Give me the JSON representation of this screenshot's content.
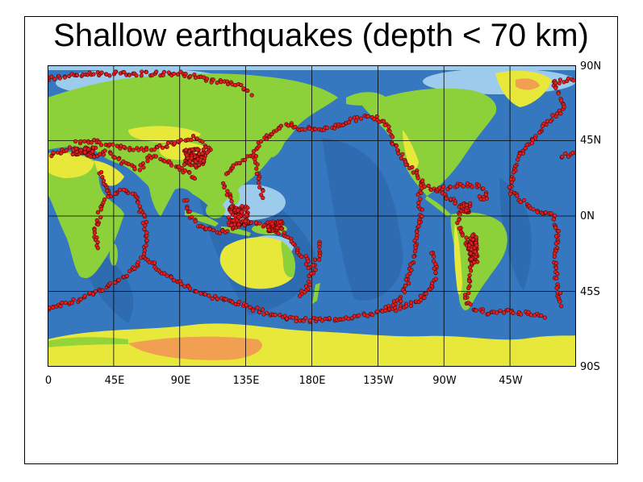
{
  "title": "Shallow earthquakes (depth < 70 km)",
  "colors": {
    "deep_ocean": "#2f6fb3",
    "mid_ocean": "#3b86cf",
    "shelf": "#9fd0ee",
    "ridge": "#a9c6ea",
    "lowland": "#8cd13a",
    "upland": "#e8e83a",
    "highland": "#f0a050",
    "ice": "#e8e070",
    "quake_fill": "#e02020",
    "quake_edge": "#400000",
    "grid": "#000000"
  },
  "map": {
    "x_axis_labels": [
      "0",
      "45E",
      "90E",
      "135E",
      "180E",
      "135W",
      "90W",
      "45W"
    ],
    "y_axis_labels": [
      "90N",
      "45N",
      "0N",
      "45S",
      "90S"
    ],
    "lon_range_east": [
      0,
      360
    ],
    "lat_range": [
      -90,
      90
    ]
  },
  "layers": {
    "earthquakes": "shallow-earthquake-markers",
    "plate_boundaries": "plate-boundaries"
  }
}
